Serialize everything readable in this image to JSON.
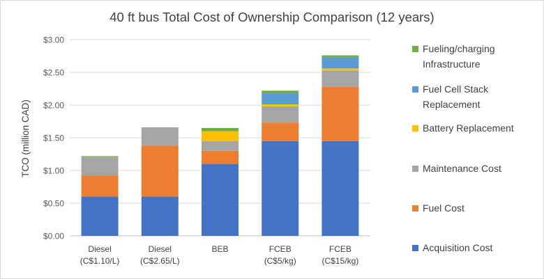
{
  "chart_data": {
    "type": "bar",
    "stacked": true,
    "title": "40 ft bus Total Cost of Ownership Comparison (12 years)",
    "ylabel": "TCO (million CAD)",
    "xlabel": "",
    "ylim": [
      0,
      3.0
    ],
    "yticks": [
      "$0.00",
      "$0.50",
      "$1.00",
      "$1.50",
      "$2.00",
      "$2.50",
      "$3.00"
    ],
    "grid": true,
    "legend_position": "right",
    "categories": [
      [
        "Diesel",
        "(C$1.10/L)"
      ],
      [
        "Diesel",
        "(C$2.65/L)"
      ],
      [
        "BEB",
        ""
      ],
      [
        "FCEB",
        "(C$5/kg)"
      ],
      [
        "FCEB",
        "(C$15/kg)"
      ]
    ],
    "series": [
      {
        "name": "Acquisition Cost",
        "color": "#4472c4",
        "values": [
          0.6,
          0.6,
          1.1,
          1.45,
          1.45
        ]
      },
      {
        "name": "Fuel Cost",
        "color": "#ed7d31",
        "values": [
          0.32,
          0.78,
          0.2,
          0.28,
          0.83
        ]
      },
      {
        "name": "Maintenance Cost",
        "color": "#a5a5a5",
        "values": [
          0.29,
          0.28,
          0.15,
          0.25,
          0.25
        ]
      },
      {
        "name": "Battery Replacement",
        "color": "#ffc000",
        "values": [
          0.0,
          0.0,
          0.15,
          0.03,
          0.03
        ]
      },
      {
        "name": "Fuel Cell Stack\nReplacement",
        "color": "#5b9bd5",
        "values": [
          0.0,
          0.0,
          0.0,
          0.17,
          0.17
        ]
      },
      {
        "name": "Fueling/charging\nInfrastructure",
        "color": "#70ad47",
        "values": [
          0.01,
          0.0,
          0.05,
          0.04,
          0.03
        ]
      }
    ]
  }
}
